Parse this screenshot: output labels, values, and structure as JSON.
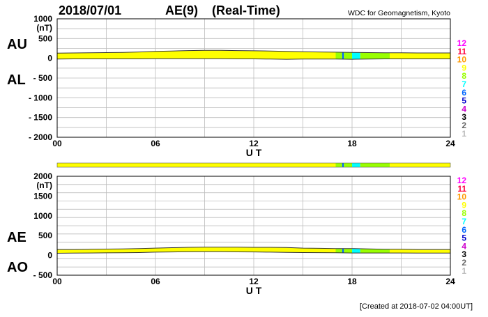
{
  "header": {
    "date": "2018/07/01",
    "index": "AE(9)",
    "mode": "(Real-Time)",
    "source": "WDC for Geomagnetism, Kyoto",
    "created": "[Created at 2018-07-02 04:00UT]"
  },
  "legend": {
    "levels": [
      "12",
      "11",
      "10",
      "9",
      "8",
      "7",
      "6",
      "5",
      "4",
      "3",
      "2",
      "1"
    ],
    "colors": [
      "#ff00ff",
      "#ff0040",
      "#ff9900",
      "#ffff00",
      "#99ff00",
      "#00ffff",
      "#0066ff",
      "#0000cc",
      "#cc00cc",
      "#000000",
      "#666666",
      "#bbbbbb"
    ]
  },
  "chart_data": [
    {
      "type": "area",
      "panel": "top",
      "unit_label": "(nT)",
      "series_labels": [
        "AU",
        "AL"
      ],
      "xlabel": "U T",
      "xticks": [
        0,
        3,
        6,
        9,
        12,
        15,
        18,
        21,
        24
      ],
      "xtick_labels": [
        "00",
        "06",
        "12",
        "18",
        "24"
      ],
      "xtick_label_hours": [
        0,
        6,
        12,
        18,
        24
      ],
      "xlim": [
        0,
        24
      ],
      "ylim": [
        -2000,
        1000
      ],
      "yticks": [
        -2000,
        -1500,
        -1000,
        -500,
        0,
        500,
        1000
      ],
      "ytick_labels": [
        "- 2000",
        "- 1500",
        "- 1000",
        "- 500",
        "0",
        "500",
        "1000"
      ],
      "grid": true,
      "x": [
        0,
        1,
        2,
        3,
        4,
        5,
        6,
        7,
        8,
        9,
        10,
        11,
        12,
        13,
        14,
        15,
        16,
        17,
        18,
        19,
        20,
        21,
        22,
        23,
        24
      ],
      "series": [
        {
          "name": "AU",
          "values": [
            130,
            135,
            140,
            145,
            150,
            160,
            175,
            185,
            195,
            200,
            200,
            195,
            190,
            185,
            175,
            165,
            160,
            155,
            150,
            145,
            140,
            140,
            135,
            135,
            135
          ]
        },
        {
          "name": "AL",
          "values": [
            -20,
            -15,
            -15,
            -15,
            -15,
            -15,
            -10,
            -10,
            -10,
            -10,
            -10,
            -15,
            -15,
            -20,
            -25,
            -20,
            -20,
            -20,
            -25,
            -20,
            -15,
            -15,
            -15,
            -15,
            -15
          ]
        }
      ],
      "level_bands": [
        {
          "start": 0,
          "end": 17,
          "level": "9"
        },
        {
          "start": 17,
          "end": 17.4,
          "level": "8"
        },
        {
          "start": 17.4,
          "end": 17.5,
          "level": "6"
        },
        {
          "start": 17.5,
          "end": 18,
          "level": "8"
        },
        {
          "start": 18,
          "end": 18.5,
          "level": "7"
        },
        {
          "start": 18.5,
          "end": 20.3,
          "level": "8"
        },
        {
          "start": 20.3,
          "end": 24,
          "level": "9"
        }
      ]
    },
    {
      "type": "area",
      "panel": "bottom",
      "unit_label": "(nT)",
      "series_labels": [
        "AE",
        "AO"
      ],
      "xlabel": "U T",
      "xticks": [
        0,
        3,
        6,
        9,
        12,
        15,
        18,
        21,
        24
      ],
      "xtick_labels": [
        "00",
        "06",
        "12",
        "18",
        "24"
      ],
      "xtick_label_hours": [
        0,
        6,
        12,
        18,
        24
      ],
      "xlim": [
        0,
        24
      ],
      "ylim": [
        -500,
        2000
      ],
      "yticks": [
        -500,
        0,
        500,
        1000,
        1500,
        2000
      ],
      "ytick_labels": [
        "- 500",
        "0",
        "500",
        "1000",
        "1500",
        "2000"
      ],
      "grid": true,
      "x": [
        0,
        1,
        2,
        3,
        4,
        5,
        6,
        7,
        8,
        9,
        10,
        11,
        12,
        13,
        14,
        15,
        16,
        17,
        18,
        19,
        20,
        21,
        22,
        23,
        24
      ],
      "series": [
        {
          "name": "AE",
          "values": [
            150,
            150,
            155,
            160,
            165,
            175,
            185,
            195,
            205,
            210,
            210,
            210,
            205,
            205,
            200,
            185,
            180,
            175,
            175,
            165,
            155,
            155,
            150,
            150,
            150
          ]
        },
        {
          "name": "AO",
          "values": [
            55,
            60,
            62,
            65,
            68,
            72,
            82,
            88,
            92,
            95,
            95,
            90,
            88,
            83,
            75,
            72,
            70,
            67,
            62,
            62,
            62,
            62,
            60,
            60,
            60
          ]
        }
      ],
      "level_bands": [
        {
          "start": 0,
          "end": 17,
          "level": "9"
        },
        {
          "start": 17,
          "end": 17.4,
          "level": "8"
        },
        {
          "start": 17.4,
          "end": 17.5,
          "level": "6"
        },
        {
          "start": 17.5,
          "end": 18,
          "level": "8"
        },
        {
          "start": 18,
          "end": 18.5,
          "level": "7"
        },
        {
          "start": 18.5,
          "end": 20.3,
          "level": "8"
        },
        {
          "start": 20.3,
          "end": 24,
          "level": "9"
        }
      ]
    }
  ]
}
